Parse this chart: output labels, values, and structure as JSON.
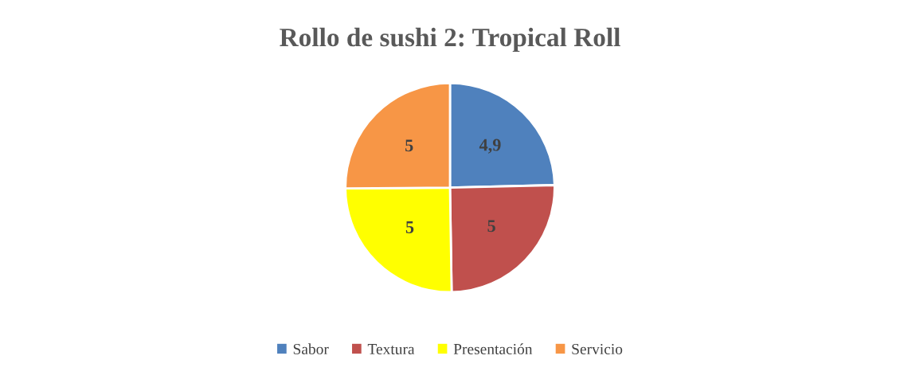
{
  "chart_data": {
    "type": "pie",
    "title": "Rollo de sushi 2: Tropical Roll",
    "categories": [
      "Sabor",
      "Textura",
      "Presentación",
      "Servicio"
    ],
    "values": [
      4.9,
      5,
      5,
      5
    ],
    "value_labels": [
      "4,9",
      "5",
      "5",
      "5"
    ],
    "colors": [
      "#4f81bd",
      "#c0504d",
      "#ffff00",
      "#f79646"
    ],
    "legend": "bottom"
  }
}
